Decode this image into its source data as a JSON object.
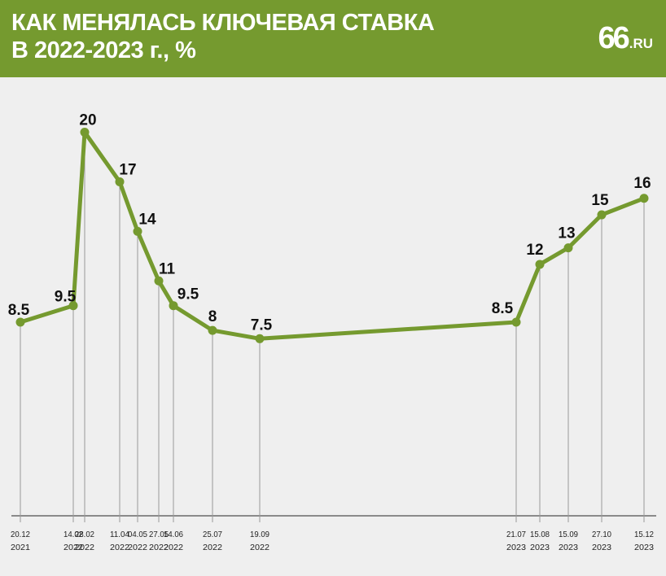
{
  "header": {
    "title_line1": "КАК МЕНЯЛАСЬ КЛЮЧЕВАЯ СТАВКА",
    "title_line2": "В 2022-2023 г., %",
    "logo_main": "66",
    "logo_suffix": ".RU"
  },
  "colors": {
    "accent": "#759a2f",
    "line": "#759a2f",
    "background": "#efefef",
    "guide": "#9a9a9a"
  },
  "chart_data": {
    "type": "line",
    "title": "КАК МЕНЯЛАСЬ КЛЮЧЕВАЯ СТАВКА В 2022-2023 г., %",
    "xlabel": "",
    "ylabel": "",
    "ylim": [
      0,
      21
    ],
    "grid": false,
    "points": [
      {
        "date": "2021-12-20",
        "day": "20.12",
        "year": "2021",
        "value": 8.5,
        "label": "8.5"
      },
      {
        "date": "2022-02-14",
        "day": "14.02",
        "year": "2022",
        "value": 9.5,
        "label": "9.5"
      },
      {
        "date": "2022-02-28",
        "day": "28.02",
        "year": "2022",
        "value": 20,
        "label": "20"
      },
      {
        "date": "2022-04-11",
        "day": "11.04",
        "year": "2022",
        "value": 17,
        "label": "17"
      },
      {
        "date": "2022-05-04",
        "day": "04.05",
        "year": "2022",
        "value": 14,
        "label": "14"
      },
      {
        "date": "2022-05-27",
        "day": "27.05",
        "year": "2022",
        "value": 11,
        "label": "11"
      },
      {
        "date": "2022-06-14",
        "day": "14.06",
        "year": "2022",
        "value": 9.5,
        "label": "9.5"
      },
      {
        "date": "2022-07-25",
        "day": "25.07",
        "year": "2022",
        "value": 8,
        "label": "8"
      },
      {
        "date": "2022-09-19",
        "day": "19.09",
        "year": "2022",
        "value": 7.5,
        "label": "7.5"
      },
      {
        "date": "2023-07-21",
        "day": "21.07",
        "year": "2023",
        "value": 8.5,
        "label": "8.5"
      },
      {
        "date": "2023-08-15",
        "day": "15.08",
        "year": "2023",
        "value": 12,
        "label": "12"
      },
      {
        "date": "2023-09-15",
        "day": "15.09",
        "year": "2023",
        "value": 13,
        "label": "13"
      },
      {
        "date": "2023-10-27",
        "day": "27.10",
        "year": "2023",
        "value": 15,
        "label": "15"
      },
      {
        "date": "2023-12-15",
        "day": "15.12",
        "year": "2023",
        "value": 16,
        "label": "16"
      }
    ]
  }
}
